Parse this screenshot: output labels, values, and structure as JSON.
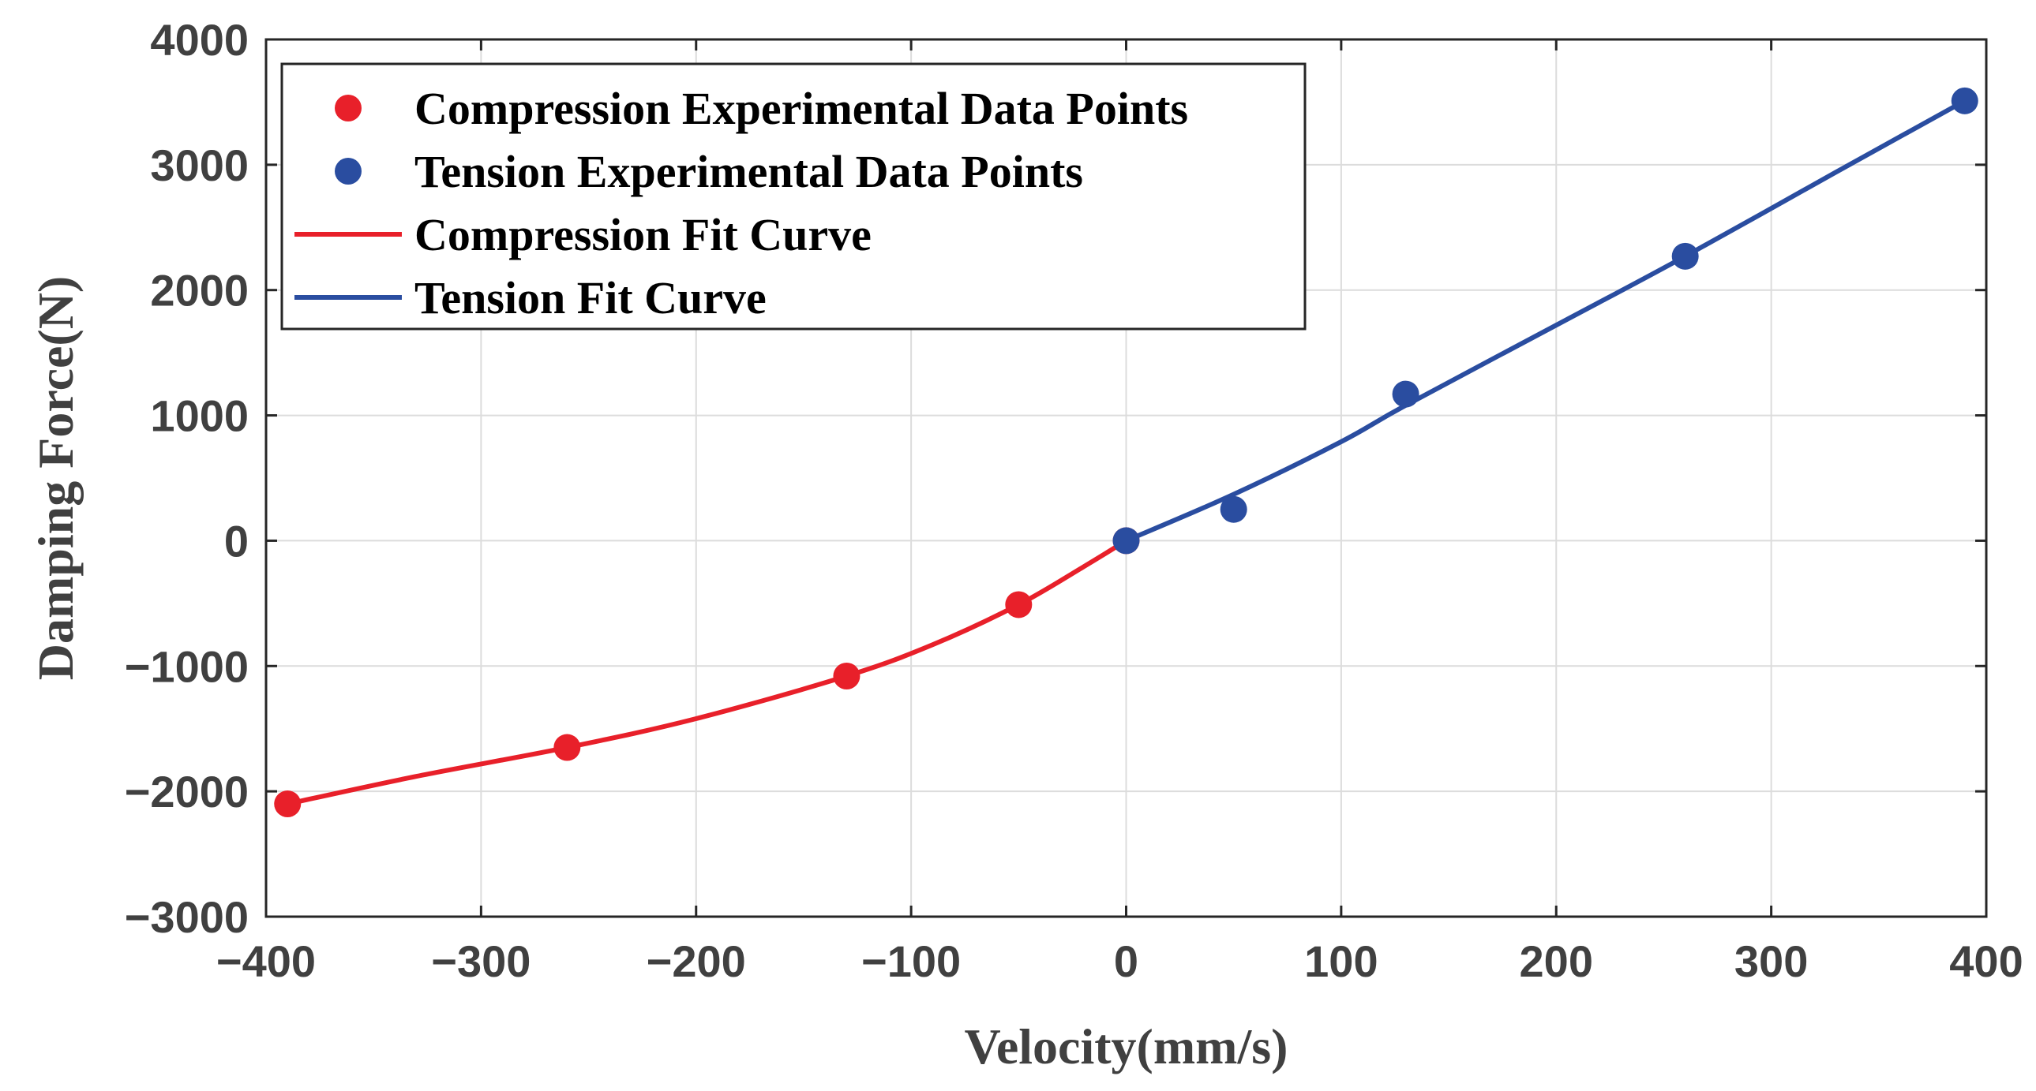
{
  "chart_data": {
    "type": "line",
    "title": "",
    "xlabel": "Velocity(mm/s)",
    "ylabel": "Damping Force(N)",
    "xlim": [
      -400,
      400
    ],
    "ylim": [
      -3000,
      4000
    ],
    "xticks": [
      -400,
      -300,
      -200,
      -100,
      0,
      100,
      200,
      300,
      400
    ],
    "yticks": [
      -3000,
      -2000,
      -1000,
      0,
      1000,
      2000,
      3000,
      4000
    ],
    "xtick_labels": [
      "−400",
      "−300",
      "−200",
      "−100",
      "0",
      "100",
      "200",
      "300",
      "400"
    ],
    "ytick_labels": [
      "−3000",
      "−2000",
      "−1000",
      "0",
      "1000",
      "2000",
      "3000",
      "4000"
    ],
    "grid": true,
    "legend_position": "top-left",
    "colors": {
      "compression": "#e8202a",
      "tension": "#2a4da0",
      "grid": "#dcdcdc",
      "axis": "#262626"
    },
    "series": [
      {
        "name": "Compression Experimental Data Points",
        "kind": "scatter",
        "color": "#e8202a",
        "x": [
          -390,
          -260,
          -130,
          -50,
          0
        ],
        "y": [
          -2100,
          -1650,
          -1080,
          -510,
          0
        ]
      },
      {
        "name": "Tension Experimental Data Points",
        "kind": "scatter",
        "color": "#2a4da0",
        "x": [
          0,
          50,
          130,
          260,
          390
        ],
        "y": [
          0,
          250,
          1170,
          2270,
          3510
        ]
      },
      {
        "name": "Compression Fit Curve",
        "kind": "line",
        "color": "#e8202a",
        "x": [
          -390,
          -330,
          -260,
          -200,
          -130,
          -90,
          -50,
          -20,
          0
        ],
        "y": [
          -2100,
          -1880,
          -1650,
          -1420,
          -1080,
          -830,
          -510,
          -210,
          0
        ]
      },
      {
        "name": "Tension Fit Curve",
        "kind": "line",
        "color": "#2a4da0",
        "x": [
          0,
          50,
          100,
          130,
          200,
          260,
          330,
          390
        ],
        "y": [
          0,
          370,
          790,
          1080,
          1720,
          2270,
          2940,
          3510
        ]
      }
    ]
  }
}
